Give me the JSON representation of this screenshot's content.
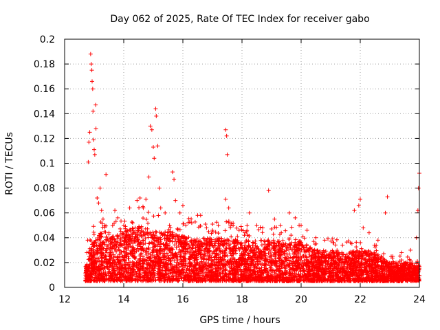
{
  "chart_data": {
    "type": "scatter",
    "title": "Day 062 of 2025, Rate Of TEC Index for receiver gabo",
    "xlabel": "GPS time / hours",
    "ylabel": "ROTI / TECUs",
    "xlim": [
      12,
      24
    ],
    "ylim": [
      0,
      0.2
    ],
    "x_ticks": [
      12,
      14,
      16,
      18,
      20,
      22,
      24
    ],
    "x_tick_labels": [
      "12",
      "14",
      "16",
      "18",
      "20",
      "22",
      "24"
    ],
    "y_ticks": [
      0,
      0.02,
      0.04,
      0.06,
      0.08,
      0.1,
      0.12,
      0.14,
      0.16,
      0.18,
      0.2
    ],
    "y_tick_labels": [
      "0",
      "0.02",
      "0.04",
      "0.06",
      "0.08",
      "0.1",
      "0.12",
      "0.14",
      "0.16",
      "0.18",
      "0.2"
    ],
    "grid": true,
    "marker": "+",
    "marker_color": "#ff0000",
    "series": [
      {
        "name": "ROTI",
        "points": [
          [
            12.75,
            0.028
          ],
          [
            12.78,
            0.038
          ],
          [
            12.8,
            0.101
          ],
          [
            12.82,
            0.117
          ],
          [
            12.85,
            0.125
          ],
          [
            12.88,
            0.188
          ],
          [
            12.9,
            0.18
          ],
          [
            12.92,
            0.175
          ],
          [
            12.93,
            0.166
          ],
          [
            12.95,
            0.16
          ],
          [
            12.96,
            0.142
          ],
          [
            12.98,
            0.119
          ],
          [
            13.0,
            0.111
          ],
          [
            13.02,
            0.107
          ],
          [
            13.05,
            0.147
          ],
          [
            13.06,
            0.128
          ],
          [
            13.1,
            0.072
          ],
          [
            13.15,
            0.068
          ],
          [
            13.2,
            0.08
          ],
          [
            13.25,
            0.062
          ],
          [
            13.3,
            0.055
          ],
          [
            13.35,
            0.05
          ],
          [
            13.4,
            0.091
          ],
          [
            13.5,
            0.044
          ],
          [
            13.6,
            0.04
          ],
          [
            13.7,
            0.062
          ],
          [
            13.8,
            0.056
          ],
          [
            13.9,
            0.045
          ],
          [
            14.0,
            0.05
          ],
          [
            14.1,
            0.042
          ],
          [
            14.2,
            0.064
          ],
          [
            14.3,
            0.052
          ],
          [
            14.45,
            0.07
          ],
          [
            14.55,
            0.072
          ],
          [
            14.65,
            0.065
          ],
          [
            14.75,
            0.071
          ],
          [
            14.85,
            0.089
          ],
          [
            14.9,
            0.13
          ],
          [
            14.95,
            0.127
          ],
          [
            15.0,
            0.113
          ],
          [
            15.03,
            0.104
          ],
          [
            15.08,
            0.144
          ],
          [
            15.1,
            0.138
          ],
          [
            15.15,
            0.114
          ],
          [
            15.2,
            0.08
          ],
          [
            15.25,
            0.064
          ],
          [
            15.4,
            0.06
          ],
          [
            15.55,
            0.05
          ],
          [
            15.65,
            0.093
          ],
          [
            15.7,
            0.087
          ],
          [
            15.75,
            0.07
          ],
          [
            15.9,
            0.06
          ],
          [
            16.0,
            0.066
          ],
          [
            16.1,
            0.05
          ],
          [
            16.3,
            0.052
          ],
          [
            16.5,
            0.058
          ],
          [
            16.6,
            0.058
          ],
          [
            16.8,
            0.048
          ],
          [
            17.0,
            0.046
          ],
          [
            17.2,
            0.05
          ],
          [
            17.45,
            0.127
          ],
          [
            17.48,
            0.122
          ],
          [
            17.5,
            0.107
          ],
          [
            17.45,
            0.071
          ],
          [
            17.55,
            0.064
          ],
          [
            17.7,
            0.05
          ],
          [
            17.9,
            0.046
          ],
          [
            18.1,
            0.044
          ],
          [
            18.25,
            0.06
          ],
          [
            18.5,
            0.05
          ],
          [
            18.7,
            0.048
          ],
          [
            18.9,
            0.078
          ],
          [
            19.1,
            0.055
          ],
          [
            19.3,
            0.05
          ],
          [
            19.6,
            0.06
          ],
          [
            19.8,
            0.056
          ],
          [
            20.0,
            0.05
          ],
          [
            20.2,
            0.046
          ],
          [
            20.5,
            0.04
          ],
          [
            20.8,
            0.038
          ],
          [
            21.1,
            0.036
          ],
          [
            21.4,
            0.034
          ],
          [
            21.8,
            0.062
          ],
          [
            21.95,
            0.066
          ],
          [
            22.0,
            0.071
          ],
          [
            22.1,
            0.048
          ],
          [
            22.3,
            0.044
          ],
          [
            22.6,
            0.038
          ],
          [
            22.85,
            0.06
          ],
          [
            22.92,
            0.073
          ],
          [
            23.1,
            0.025
          ],
          [
            23.4,
            0.028
          ],
          [
            23.7,
            0.03
          ],
          [
            23.9,
            0.04
          ],
          [
            23.95,
            0.062
          ],
          [
            23.97,
            0.08
          ],
          [
            24.0,
            0.092
          ]
        ],
        "dense_band": {
          "description": "dense cluster of points between 12.7 h and 24 h",
          "x_range": [
            12.7,
            24.0
          ],
          "y_floor": 0.005,
          "y_upper_envelope": [
            [
              12.8,
              0.03
            ],
            [
              13.2,
              0.045
            ],
            [
              13.5,
              0.04
            ],
            [
              14.0,
              0.045
            ],
            [
              14.5,
              0.05
            ],
            [
              15.0,
              0.045
            ],
            [
              15.5,
              0.045
            ],
            [
              16.0,
              0.042
            ],
            [
              16.5,
              0.04
            ],
            [
              17.0,
              0.04
            ],
            [
              17.5,
              0.04
            ],
            [
              18.0,
              0.038
            ],
            [
              18.5,
              0.038
            ],
            [
              19.0,
              0.038
            ],
            [
              19.5,
              0.04
            ],
            [
              20.0,
              0.037
            ],
            [
              20.5,
              0.03
            ],
            [
              21.0,
              0.03
            ],
            [
              21.5,
              0.028
            ],
            [
              22.0,
              0.03
            ],
            [
              22.5,
              0.028
            ],
            [
              23.0,
              0.02
            ],
            [
              23.5,
              0.02
            ],
            [
              24.0,
              0.018
            ]
          ]
        }
      }
    ]
  }
}
